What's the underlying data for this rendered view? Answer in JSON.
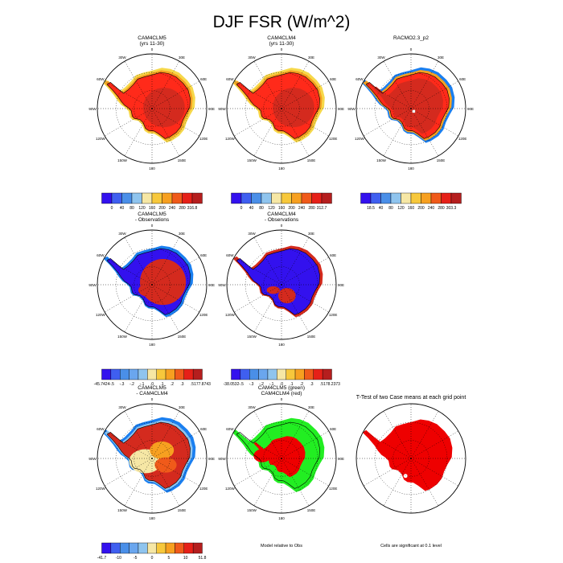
{
  "figure": {
    "title": "DJF FSR (W/m^2)"
  },
  "colors": {
    "land": "#d42a1e",
    "land_warm": "#ff2a1a",
    "sea_ice_yellow": "#f6d84a",
    "sea_ice_orange": "#f7a020",
    "sea_ice_blue": "#1a7ff0",
    "neg_blue": "#3311ee",
    "green": "#22ee22",
    "red": "#ee0000"
  },
  "chart_data": [
    {
      "type": "polar-map",
      "id": "p1",
      "title": "CAM4CLM5",
      "subtitle": "(yrs 11-30)",
      "lon_labels": [
        "0",
        "30E",
        "60E",
        "90E",
        "120E",
        "150E",
        "180",
        "150W",
        "120W",
        "90W",
        "60W",
        "30W"
      ],
      "colorbar": {
        "labels": [
          "0",
          "40",
          "80",
          "120",
          "160",
          "200",
          "240",
          "280",
          "316.8"
        ],
        "colors": [
          "#3311ee",
          "#3f5ff0",
          "#4a8fe8",
          "#8fc4ee",
          "#f6e7a5",
          "#f7c83c",
          "#f7a020",
          "#f05a1a",
          "#e62018",
          "#b51e1e"
        ]
      }
    },
    {
      "type": "polar-map",
      "id": "p2",
      "title": "CAM4CLM4",
      "subtitle": "(yrs 11-30)",
      "lon_labels": [
        "0",
        "30E",
        "60E",
        "90E",
        "120E",
        "150E",
        "180",
        "150W",
        "120W",
        "90W",
        "60W",
        "30W"
      ],
      "colorbar": {
        "labels": [
          "0",
          "40",
          "80",
          "120",
          "160",
          "200",
          "240",
          "280",
          "312.7"
        ],
        "colors": [
          "#3311ee",
          "#3f5ff0",
          "#4a8fe8",
          "#8fc4ee",
          "#f6e7a5",
          "#f7c83c",
          "#f7a020",
          "#f05a1a",
          "#e62018",
          "#b51e1e"
        ]
      }
    },
    {
      "type": "polar-map",
      "id": "p3",
      "title": "RACMO2.3_p2",
      "subtitle": "",
      "lon_labels": [
        "0",
        "30E",
        "60E",
        "90E",
        "120E",
        "150E",
        "180",
        "150W",
        "120W",
        "90W",
        "60W",
        "30W"
      ],
      "colorbar": {
        "labels": [
          "18.5",
          "40",
          "80",
          "120",
          "160",
          "200",
          "240",
          "280",
          "303.3"
        ],
        "colors": [
          "#3311ee",
          "#3f5ff0",
          "#4a8fe8",
          "#8fc4ee",
          "#f6e7a5",
          "#f7c83c",
          "#f7a020",
          "#f05a1a",
          "#e62018",
          "#b51e1e"
        ]
      }
    },
    {
      "type": "polar-map",
      "id": "p4",
      "title": "CAM4CLM5",
      "subtitle": "- Observations",
      "lon_labels": [
        "0",
        "30E",
        "60E",
        "90E",
        "120E",
        "150E",
        "180",
        "150W",
        "120W",
        "90W",
        "60W",
        "30W"
      ],
      "colorbar": {
        "labels": [
          "-45.7424",
          "-.5",
          "-.3",
          "-.2",
          "-.1",
          ".0",
          ".1",
          ".2",
          ".3",
          ".5",
          "177.8743"
        ],
        "colors": [
          "#3311ee",
          "#3f5ff0",
          "#4a8fe8",
          "#6aa6ee",
          "#8fc4ee",
          "#f6e7a5",
          "#f7c83c",
          "#f7a020",
          "#f05a1a",
          "#e62018",
          "#b51e1e"
        ]
      }
    },
    {
      "type": "polar-map",
      "id": "p5",
      "title": "CAM4CLM4",
      "subtitle": "- Observations",
      "lon_labels": [
        "0",
        "30E",
        "60E",
        "90E",
        "120E",
        "150E",
        "180",
        "150W",
        "120W",
        "90W",
        "60W",
        "30W"
      ],
      "colorbar": {
        "labels": [
          "-38.0532",
          "-.5",
          "-.3",
          "-.2",
          "-.1",
          ".0",
          ".1",
          ".2",
          ".3",
          ".5",
          "178.2373"
        ],
        "colors": [
          "#3311ee",
          "#3f5ff0",
          "#4a8fe8",
          "#6aa6ee",
          "#8fc4ee",
          "#f6e7a5",
          "#f7c83c",
          "#f7a020",
          "#f05a1a",
          "#e62018",
          "#b51e1e"
        ]
      }
    },
    {
      "type": "polar-map",
      "id": "p7",
      "title": "CAM4CLM5",
      "subtitle": "- CAM4CLM4",
      "lon_labels": [
        "0",
        "30E",
        "60E",
        "90E",
        "120E",
        "150E",
        "180",
        "150W",
        "120W",
        "90W",
        "60W",
        "30W"
      ],
      "colorbar": {
        "labels": [
          "-41.7",
          "-10",
          "-5",
          "0",
          "5",
          "10",
          "51.8"
        ],
        "colors": [
          "#3311ee",
          "#3f5ff0",
          "#4a8fe8",
          "#6aa6ee",
          "#8fc4ee",
          "#f6e7a5",
          "#f7c83c",
          "#f7a020",
          "#f05a1a",
          "#e62018",
          "#b51e1e"
        ]
      }
    },
    {
      "type": "polar-map",
      "id": "p8",
      "title": "CAM4CLM5 (green)",
      "subtitle": "CAM4CLM4 (red)",
      "lon_labels": [
        "0",
        "30E",
        "60E",
        "90E",
        "120E",
        "150E",
        "180",
        "150W",
        "120W",
        "90W",
        "60W",
        "30W"
      ],
      "footnote": "Model relative to Obs"
    },
    {
      "type": "polar-map",
      "id": "p9",
      "title": "T-Test of two Case means at each grid point",
      "subtitle": "",
      "lon_labels": [],
      "footnote": "Cells are significant at 0.1 level"
    }
  ]
}
